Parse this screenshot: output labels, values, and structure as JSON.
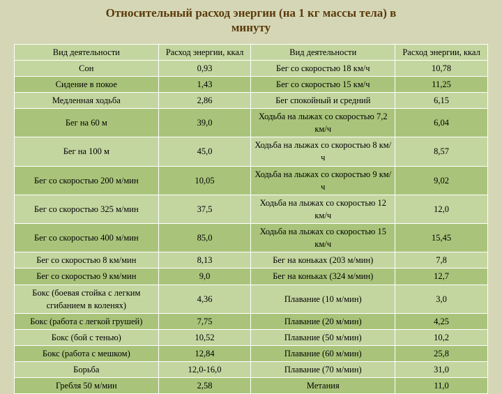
{
  "title_line1": "Относительный расход энергии (на 1 кг массы тела) в",
  "title_line2": "минуту",
  "headers": {
    "activity_left": "Вид деятельности",
    "value_left": "Расход энергии, ккал",
    "activity_right": "Вид деятельности",
    "value_right": "Расход энергии, ккал"
  },
  "colors": {
    "page_bg": "#d5d6b5",
    "row_light": "#c4d6a0",
    "row_dark": "#a9c47a",
    "border": "#ffffff",
    "title": "#5a3a0a"
  },
  "rows": [
    {
      "s": "l",
      "a1": "Сон",
      "v1": "0,93",
      "a2": "Бег со скоростью 18 км/ч",
      "v2": "10,78"
    },
    {
      "s": "d",
      "a1": "Сидение в покое",
      "v1": "1,43",
      "a2": "Бег со скоростью 15 км/ч",
      "v2": "11,25"
    },
    {
      "s": "l",
      "a1": "Медленная ходьба",
      "v1": "2,86",
      "a2": "Бег спокойный и средний",
      "v2": "6,15"
    },
    {
      "s": "d",
      "a1": "Бег на 60 м",
      "v1": "39,0",
      "a2": "Ходьба на лыжах со скоростью 7,2 км/ч",
      "v2": "6,04"
    },
    {
      "s": "l",
      "a1": "Бег на 100 м",
      "v1": "45,0",
      "a2": "Ходьба на лыжах со скоростью 8 км/ч",
      "v2": "8,57"
    },
    {
      "s": "d",
      "a1": "Бег со скоростью 200 м/мин",
      "v1": "10,05",
      "a2": "Ходьба на лыжах со скоростью 9 км/ч",
      "v2": "9,02"
    },
    {
      "s": "l",
      "a1": "Бег со скоростью 325 м/мин",
      "v1": "37,5",
      "a2": "Ходьба на лыжах со скоростью 12 км/ч",
      "v2": "12,0"
    },
    {
      "s": "d",
      "a1": "Бег со скоростью 400 м/мин",
      "v1": "85,0",
      "a2": "Ходьба на лыжах со скоростью 15 км/ч",
      "v2": "15,45"
    },
    {
      "s": "l",
      "a1": "Бег со скоростью 8 км/мин",
      "v1": "8,13",
      "a2": "Бег на коньках (203 м/мин)",
      "v2": "7,8"
    },
    {
      "s": "d",
      "a1": "Бег со скоростью 9 км/мин",
      "v1": "9,0",
      "a2": "Бег на коньках (324 м/мин)",
      "v2": "12,7"
    },
    {
      "s": "l",
      "a1": "Бокс (боевая стойка с легким сгибанием в коленях)",
      "v1": "4,36",
      "a2": "Плавание (10 м/мин)",
      "v2": "3,0"
    },
    {
      "s": "d",
      "a1": "Бокс (работа с легкой грушей)",
      "v1": "7,75",
      "a2": "Плавание (20 м/мин)",
      "v2": "4,25"
    },
    {
      "s": "l",
      "a1": "Бокс (бой с тенью)",
      "v1": "10,52",
      "a2": "Плавание (50 м/мин)",
      "v2": "10,2"
    },
    {
      "s": "d",
      "a1": "Бокс (работа с мешком)",
      "v1": "12,84",
      "a2": "Плавание (60 м/мин)",
      "v2": "25,8"
    },
    {
      "s": "l",
      "a1": "Борьба",
      "v1": "12,0-16,0",
      "a2": "Плавание (70 м/мин)",
      "v2": "31,0"
    },
    {
      "s": "d",
      "a1": "Гребля 50 м/мин",
      "v1": "2,58",
      "a2": "Метания",
      "v2": "11,0"
    }
  ]
}
